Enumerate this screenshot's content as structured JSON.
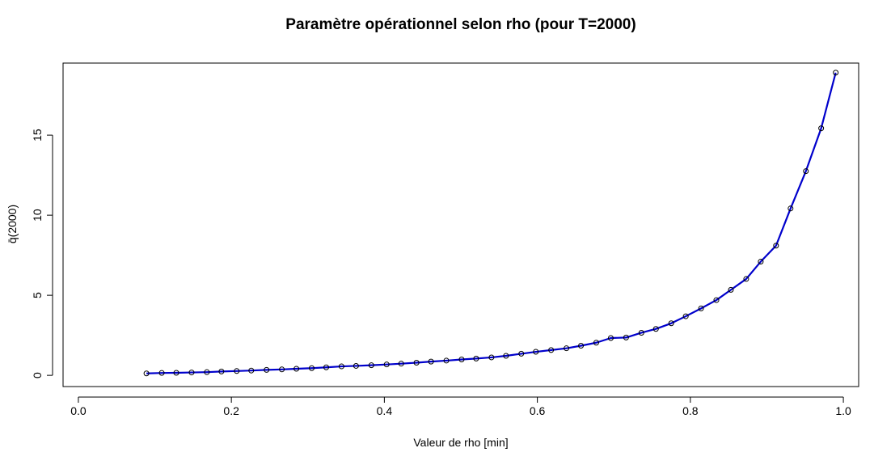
{
  "chart_data": {
    "type": "line",
    "title": "Paramètre opérationnel selon rho (pour T=2000)",
    "xlabel": "Valeur de rho [min]",
    "ylabel": "q̄(2000)",
    "xlim": [
      -0.02,
      1.02
    ],
    "ylim": [
      -0.7,
      19.5
    ],
    "x_ticks": [
      0.0,
      0.2,
      0.4,
      0.6,
      0.8,
      1.0
    ],
    "x_tick_labels": [
      "0.0",
      "0.2",
      "0.4",
      "0.6",
      "0.8",
      "1.0"
    ],
    "y_ticks": [
      0,
      5,
      10,
      15
    ],
    "y_tick_labels": [
      "0",
      "5",
      "10",
      "15"
    ],
    "line_color": "#0000CC",
    "marker": "open-circle",
    "series": [
      {
        "x": [
          0.089,
          0.109,
          0.128,
          0.148,
          0.168,
          0.187,
          0.207,
          0.226,
          0.246,
          0.266,
          0.285,
          0.305,
          0.324,
          0.344,
          0.363,
          0.383,
          0.403,
          0.422,
          0.442,
          0.461,
          0.481,
          0.501,
          0.52,
          0.54,
          0.559,
          0.579,
          0.598,
          0.618,
          0.638,
          0.657,
          0.677,
          0.696,
          0.716,
          0.736,
          0.755,
          0.775,
          0.794,
          0.814,
          0.834,
          0.853,
          0.873,
          0.892,
          0.912,
          0.931,
          0.951,
          0.971,
          0.99
        ],
        "y": [
          0.12,
          0.15,
          0.16,
          0.18,
          0.2,
          0.24,
          0.27,
          0.3,
          0.34,
          0.37,
          0.41,
          0.45,
          0.5,
          0.56,
          0.59,
          0.63,
          0.68,
          0.73,
          0.79,
          0.86,
          0.92,
          0.99,
          1.05,
          1.12,
          1.22,
          1.35,
          1.47,
          1.58,
          1.69,
          1.85,
          2.04,
          2.33,
          2.36,
          2.66,
          2.9,
          3.25,
          3.69,
          4.18,
          4.7,
          5.34,
          6.02,
          7.1,
          8.1,
          10.42,
          12.75,
          15.43,
          18.9
        ]
      }
    ]
  }
}
